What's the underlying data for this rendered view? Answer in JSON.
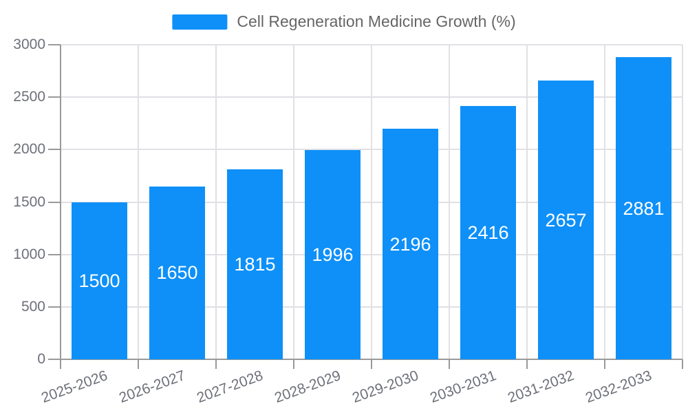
{
  "legend": {
    "label": "Cell Regeneration Medicine Growth (%)"
  },
  "chart_data": {
    "type": "bar",
    "title": "Cell Regeneration Medicine Growth (%)",
    "categories": [
      "2025-2026",
      "2026-2027",
      "2027-2028",
      "2028-2029",
      "2029-2030",
      "2030-2031",
      "2031-2032",
      "2032-2033"
    ],
    "values": [
      1500,
      1650,
      1815,
      1996,
      2196,
      2416,
      2657,
      2881
    ],
    "value_labels": [
      "1500",
      "1650",
      "1815",
      "1996",
      "2196",
      "2416",
      "2657",
      "2881"
    ],
    "xlabel": "",
    "ylabel": "",
    "ylim": [
      0,
      3000
    ],
    "ytick_step": 500,
    "ytick_labels": [
      "0",
      "500",
      "1000",
      "1500",
      "2000",
      "2500",
      "3000"
    ],
    "grid": true,
    "legend_position": "top-center",
    "x_label_rotation_deg": 20,
    "colors": {
      "bar": "#0E90F8",
      "value_label": "#FFFFFF",
      "axis": "#999999",
      "gridline": "#E0E0E5",
      "tick_label": "#6E7079",
      "legend_text": "#666666",
      "background": "#FFFFFF"
    }
  }
}
